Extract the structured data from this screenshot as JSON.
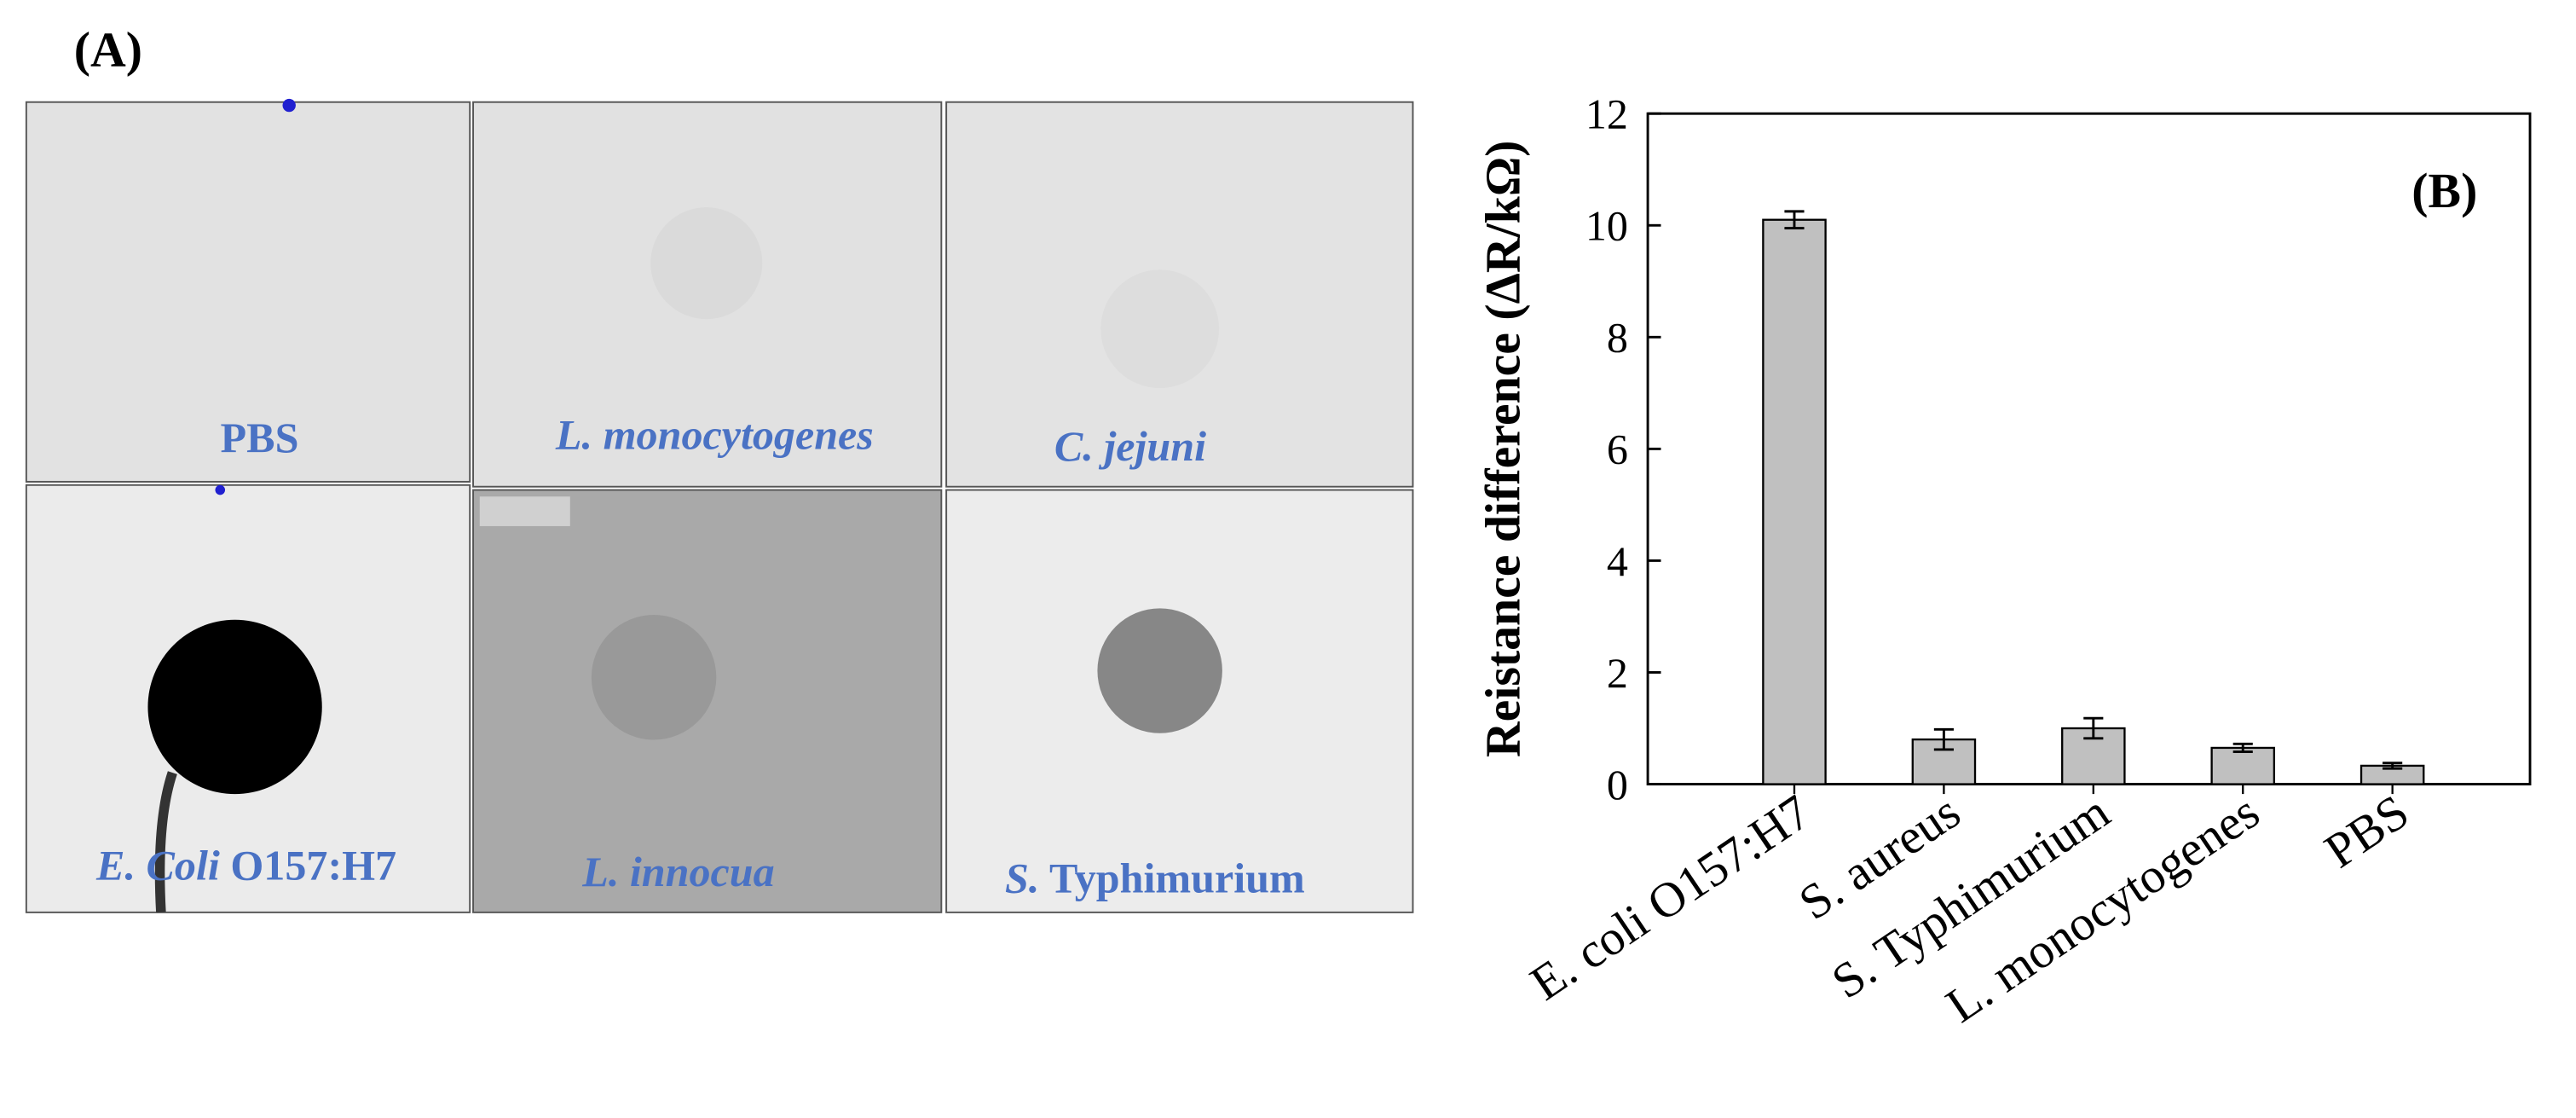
{
  "panel_a": {
    "label": "(A)",
    "tiles": [
      {
        "label": [
          {
            "text": "PBS",
            "italic": false
          }
        ]
      },
      {
        "label": [
          {
            "text": "L. monocytogenes",
            "italic": true
          }
        ]
      },
      {
        "label": [
          {
            "text": "C. jejuni",
            "italic": true
          }
        ]
      },
      {
        "label": [
          {
            "text": "E. Coli",
            "italic": true
          },
          {
            "text": " O157:H7",
            "italic": false
          }
        ]
      },
      {
        "label": [
          {
            "text": "L. innocua",
            "italic": true
          }
        ]
      },
      {
        "label": [
          {
            "text": "S.",
            "italic": true
          },
          {
            "text": " Typhimurium",
            "italic": false
          }
        ]
      }
    ]
  },
  "chart_data": {
    "type": "bar",
    "annotation": "(B)",
    "y_label": "Reistance difference (ΔR/kΩ)",
    "categories": [
      "E. coli O157:H7",
      "S. aureus",
      "S. Typhimurium",
      "L. monocytogenes",
      "PBS"
    ],
    "values": [
      10.1,
      0.8,
      1.0,
      0.65,
      0.33
    ],
    "errors": [
      0.15,
      0.18,
      0.18,
      0.07,
      0.05
    ],
    "color": "#c0c0c0",
    "ylim": [
      0,
      12
    ],
    "yticks": [
      0,
      2,
      4,
      6,
      8,
      10,
      12
    ]
  }
}
